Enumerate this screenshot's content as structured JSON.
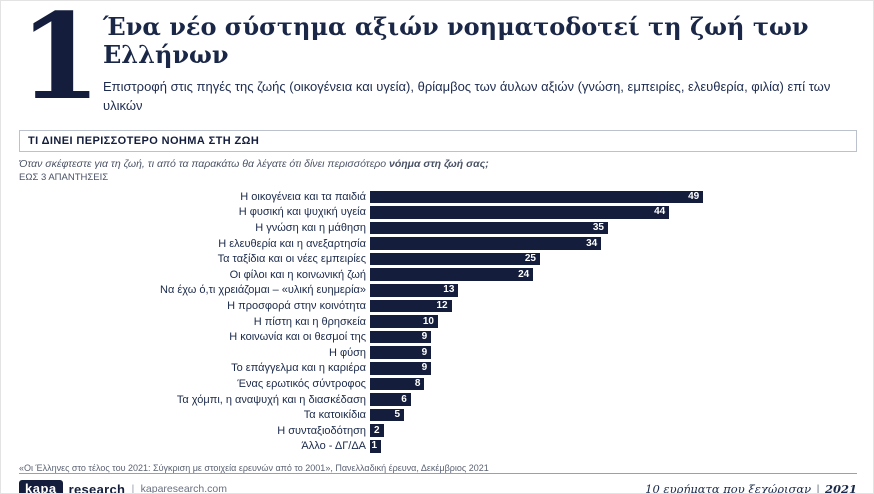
{
  "slide": {
    "number": "1",
    "title": "Ένα νέο σύστημα αξιών νοηματοδοτεί τη ζωή των Ελλήνων",
    "subtitle": "Επιστροφή στις πηγές της ζωής (οικογένεια και υγεία), θρίαμβος των άυλων αξιών (γνώση, εμπειρίες, ελευθερία, φιλία) επί των υλικών"
  },
  "section": {
    "header": "ΤΙ ΔΙΝΕΙ ΠΕΡΙΣΣΟΤΕΡΟ ΝΟΗΜΑ ΣΤΗ ΖΩΗ",
    "question_prefix": "Όταν σκέφτεστε για τη ζωή, τι από τα παρακάτω θα λέγατε ότι δίνει περισσότερο ",
    "question_bold": "νόημα στη ζωή σας;",
    "note": "ΕΩΣ 3 ΑΠΑΝΤΗΣΕΙΣ"
  },
  "chart_data": {
    "type": "bar",
    "orientation": "horizontal",
    "title": "ΤΙ ΔΙΝΕΙ ΠΕΡΙΣΣΟΤΕΡΟ ΝΟΗΜΑ ΣΤΗ ΖΩΗ",
    "categories": [
      "Η οικογένεια και τα παιδιά",
      "Η φυσική και ψυχική υγεία",
      "Η γνώση και η μάθηση",
      "Η ελευθερία και η ανεξαρτησία",
      "Τα ταξίδια και οι νέες εμπειρίες",
      "Οι φίλοι και η κοινωνική ζωή",
      "Να έχω ό,τι χρειάζομαι – «υλική ευημερία»",
      "Η προσφορά στην κοινότητα",
      "Η πίστη και η θρησκεία",
      "Η κοινωνία και οι θεσμοί της",
      "Η φύση",
      "Το επάγγελμα και η καριέρα",
      "Ένας ερωτικός σύντροφος",
      "Τα χόμπι, η αναψυχή και η διασκέδαση",
      "Τα κατοικίδια",
      "Η συνταξιοδότηση",
      "Άλλο - ΔΓ/ΔΑ"
    ],
    "values": [
      49,
      44,
      35,
      34,
      25,
      24,
      13,
      12,
      10,
      9,
      9,
      9,
      8,
      6,
      5,
      2,
      1
    ],
    "xlim": [
      0,
      50
    ],
    "grid": false,
    "legend": false,
    "bar_color": "#141e3c",
    "value_label_color": "#ffffff",
    "label_color": "#1b2a4a"
  },
  "footnote": "«Οι Έλληνες στο τέλος του 2021: Σύγκριση με στοιχεία ερευνών από το 2001», Πανελλαδική έρευνα, Δεκέμβριος 2021",
  "footer": {
    "logo_kapa": "kapa",
    "logo_research": "research",
    "separator": "|",
    "website": "kaparesearch.com",
    "right_label": "10 ευρήματα που ξεχώρισαν",
    "right_separator": "|",
    "right_year": "2021"
  },
  "colors": {
    "accent": "#141e3c",
    "border_gray": "#bcc2cd"
  }
}
